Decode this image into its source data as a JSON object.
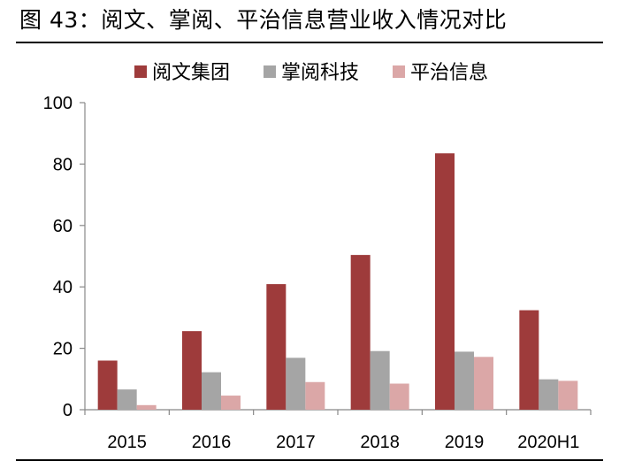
{
  "figure": {
    "title": "图 43：阅文、掌阅、平治信息营业收入情况对比"
  },
  "colors": {
    "阅文集团": "#9e3b3b",
    "掌阅科技": "#a5a5a5",
    "平治信息": "#dba7a7"
  },
  "chart_data": {
    "type": "bar",
    "title": "",
    "xlabel": "",
    "ylabel": "",
    "categories": [
      "2015",
      "2016",
      "2017",
      "2018",
      "2019",
      "2020H1"
    ],
    "ylim": [
      0,
      100
    ],
    "yticks": [
      0,
      20,
      40,
      60,
      80,
      100
    ],
    "grid": false,
    "legend": "top",
    "series": [
      {
        "name": "阅文集团",
        "values": [
          16.0,
          25.6,
          40.9,
          50.4,
          83.5,
          32.4
        ]
      },
      {
        "name": "掌阅科技",
        "values": [
          6.6,
          12.2,
          16.9,
          19.1,
          18.9,
          9.9
        ]
      },
      {
        "name": "平治信息",
        "values": [
          1.5,
          4.6,
          9.0,
          8.5,
          17.2,
          9.4
        ]
      }
    ]
  }
}
